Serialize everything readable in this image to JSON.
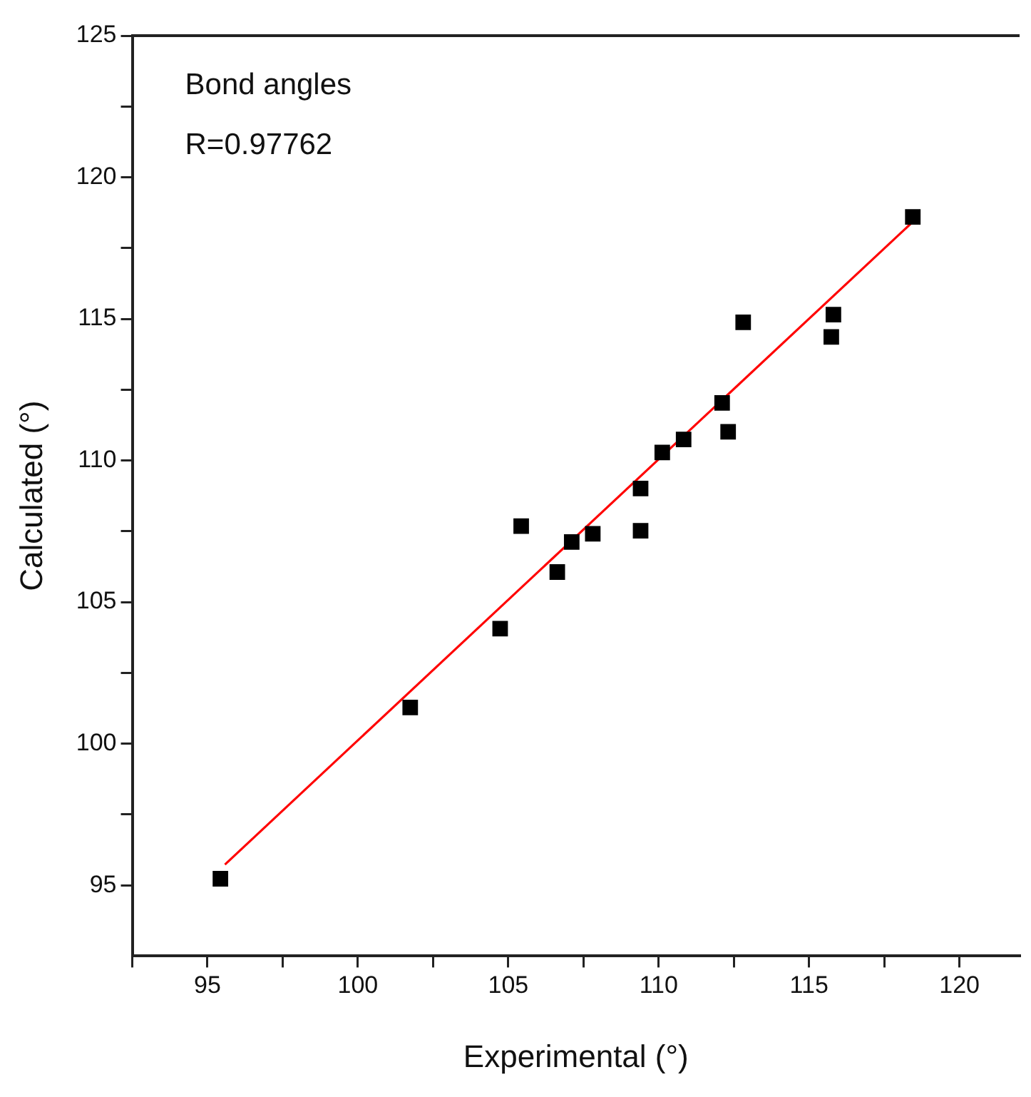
{
  "chart_data": {
    "type": "scatter",
    "xlabel": "Experimental (°)",
    "ylabel": "Calculated (°)",
    "annotations": [
      "Bond angles",
      "R=0.97762"
    ],
    "xlim": [
      92.5,
      122
    ],
    "ylim": [
      92.5,
      125
    ],
    "xticks": [
      {
        "value": 92.5,
        "label": null
      },
      95,
      {
        "value": 97.5,
        "label": null
      },
      100,
      {
        "value": 102.5,
        "label": null
      },
      105,
      {
        "value": 107.5,
        "label": null
      },
      110,
      {
        "value": 112.5,
        "label": null
      },
      115,
      {
        "value": 117.5,
        "label": null
      },
      120
    ],
    "yticks": [
      95,
      {
        "value": 97.5,
        "label": null
      },
      100,
      {
        "value": 102.5,
        "label": null
      },
      105,
      {
        "value": 107.5,
        "label": null
      },
      110,
      {
        "value": 112.5,
        "label": null
      },
      115,
      {
        "value": 117.5,
        "label": null
      },
      120,
      {
        "value": 122.5,
        "label": null
      },
      125
    ],
    "grid": false,
    "legend": false,
    "series": [
      {
        "type": "scatter",
        "marker": "square",
        "color": "#000000",
        "x": [
          95.43,
          101.74,
          104.73,
          106.63,
          105.43,
          107.11,
          107.81,
          109.4,
          109.4,
          110.12,
          110.83,
          112.11,
          112.31,
          112.81,
          115.74,
          115.81,
          118.45
        ],
        "values": [
          95.23,
          101.28,
          104.06,
          106.06,
          107.68,
          107.12,
          107.41,
          107.52,
          109.01,
          110.28,
          110.74,
          112.03,
          111.01,
          114.88,
          114.36,
          115.15,
          118.6
        ]
      },
      {
        "type": "line",
        "marker": "none",
        "color": "#ff0000",
        "x": [
          95.58,
          118.39
        ],
        "values": [
          95.73,
          118.37
        ]
      }
    ]
  }
}
